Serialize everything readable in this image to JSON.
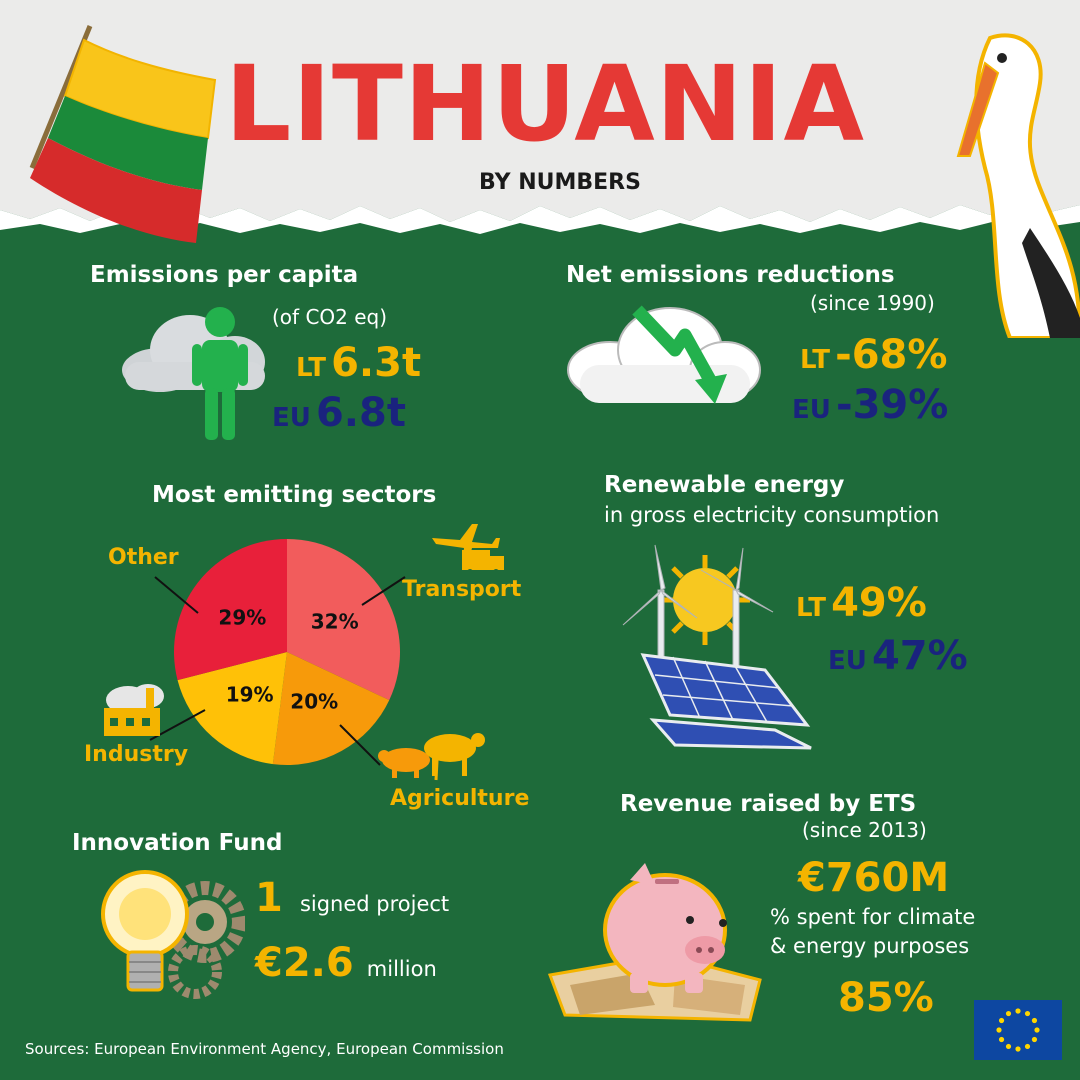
{
  "header": {
    "title": "LITHUANIA",
    "subtitle": "BY NUMBERS"
  },
  "emissions_per_capita": {
    "heading": "Emissions per capita",
    "unit_note": "(of CO2 eq)",
    "lt_label": "LT",
    "lt_value": "6.3t",
    "eu_label": "EU",
    "eu_value": "6.8t"
  },
  "net_reductions": {
    "heading": "Net emissions reductions",
    "since": "(since 1990)",
    "lt_label": "LT",
    "lt_value": "-68%",
    "eu_label": "EU",
    "eu_value": "-39%"
  },
  "sectors": {
    "heading": "Most emitting sectors",
    "chart_data": {
      "type": "pie",
      "categories": [
        "Transport",
        "Agriculture",
        "Industry",
        "Other"
      ],
      "values": [
        32,
        20,
        19,
        29
      ],
      "labels": [
        "32%",
        "20%",
        "19%",
        "29%"
      ],
      "colors": [
        "#f25c5c",
        "#f79a0a",
        "#ffc107",
        "#e8203a"
      ]
    }
  },
  "renewable": {
    "heading": "Renewable energy",
    "sub": "in gross electricity consumption",
    "lt_label": "LT",
    "lt_value": "49%",
    "eu_label": "EU",
    "eu_value": "47%"
  },
  "innovation": {
    "heading": "Innovation Fund",
    "count": "1",
    "count_text": "signed project",
    "amount": "€2.6",
    "amount_text": "million"
  },
  "ets": {
    "heading": "Revenue raised by ETS",
    "since": "(since 2013)",
    "amount": "€760M",
    "line1": "% spent for climate",
    "line2": "& energy purposes",
    "percent": "85%"
  },
  "source": "Sources: European Environment Agency, European Commission",
  "colors": {
    "background": "#1e6b3a",
    "yellow": "#f4b400",
    "navy": "#1a237e",
    "red": "#e53935"
  }
}
